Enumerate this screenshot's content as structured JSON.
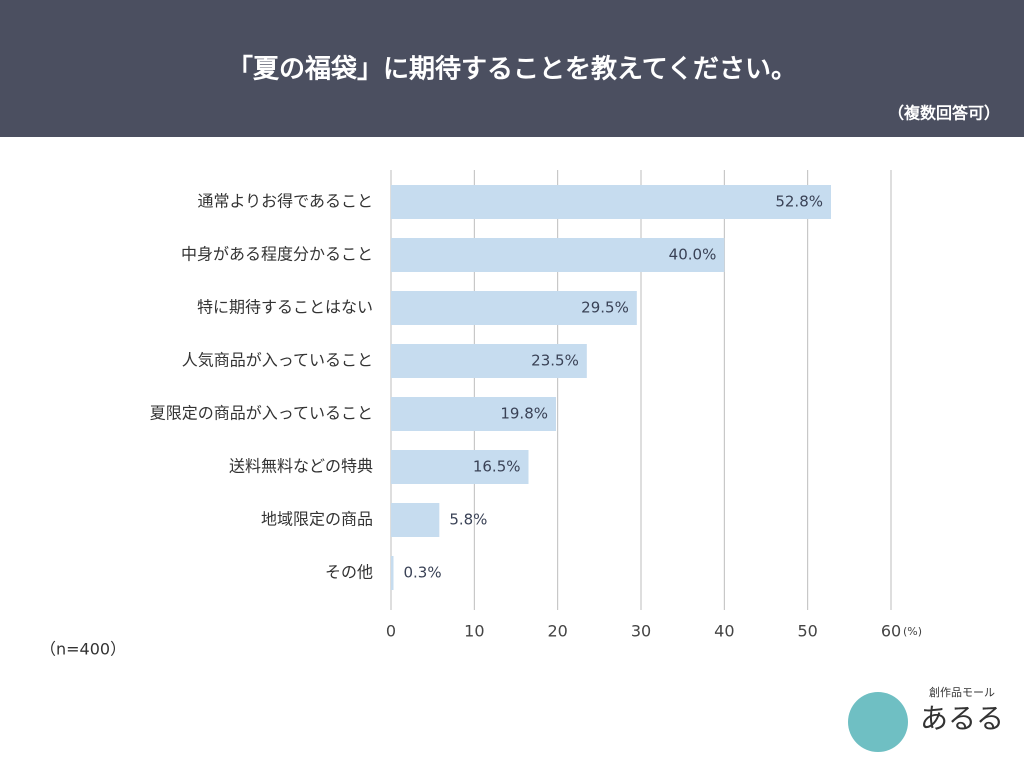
{
  "chart_data": {
    "type": "bar",
    "orientation": "horizontal",
    "title": "「夏の福袋」に期待することを教えてください。",
    "subtitle": "（複数回答可）",
    "note": "（n=400）",
    "x_unit": "(%)",
    "categories": [
      "通常よりお得であること",
      "中身がある程度分かること",
      "特に期待することはない",
      "人気商品が入っていること",
      "夏限定の商品が入っていること",
      "送料無料などの特典",
      "地域限定の商品",
      "その他"
    ],
    "values": [
      52.8,
      40.0,
      29.5,
      23.5,
      19.8,
      16.5,
      5.8,
      0.3
    ],
    "value_labels": [
      "52.8%",
      "40.0%",
      "29.5%",
      "23.5%",
      "19.8%",
      "16.5%",
      "5.8%",
      "0.3%"
    ],
    "color": "#c6dcef",
    "xlim": [
      0,
      60
    ],
    "xticks": [
      0,
      10,
      20,
      30,
      40,
      50,
      60
    ],
    "grid": true,
    "logo": {
      "tagline": "創作品モール",
      "name": "あるる"
    }
  }
}
